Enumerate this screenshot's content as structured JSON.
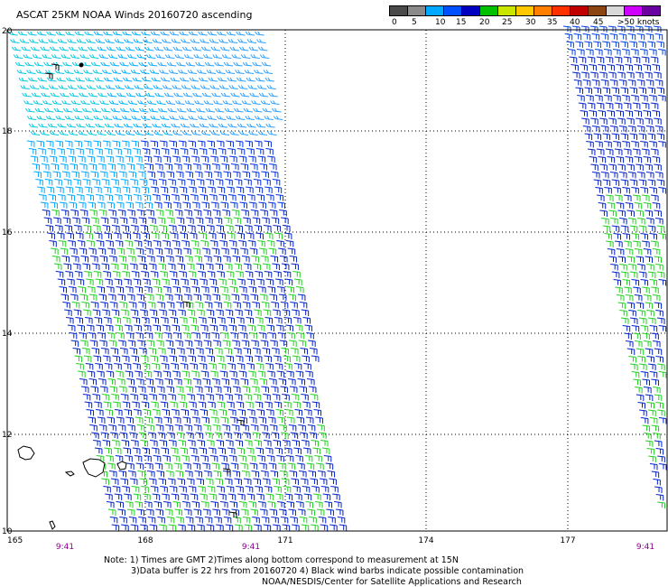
{
  "header": {
    "title": "ASCAT 25KM NOAA Winds 20160720 ascending"
  },
  "legend": {
    "colors": [
      "#4a4a4a",
      "#8a8a8a",
      "#00a8ff",
      "#0050ff",
      "#0000c0",
      "#00c000",
      "#c8e600",
      "#ffc800",
      "#ff8000",
      "#ff3000",
      "#c00000",
      "#8b4513",
      "#d8d8d8",
      "#d000ff",
      "#6a00a0"
    ],
    "labels": [
      "0",
      "5",
      "10",
      "15",
      "20",
      "25",
      "30",
      "35",
      "40",
      "45",
      ">50 knots"
    ]
  },
  "map": {
    "lat_ticks": [
      "20",
      "18",
      "16",
      "14",
      "12",
      "10"
    ],
    "lon_ticks": [
      "165",
      "168",
      "171",
      "174",
      "177"
    ],
    "times": [
      "9:41",
      "9:41",
      "9:41"
    ],
    "grid_color": "#000000"
  },
  "notes": {
    "line1": "Note: 1) Times are GMT 2)Times along bottom correspond to measurement at 15N",
    "line2": "3)Data buffer is 22 hrs from 20160720 4) Black wind barbs indicate possible contamination",
    "line3": "NOAA/NESDIS/Center for Satellite Applications and Research"
  }
}
